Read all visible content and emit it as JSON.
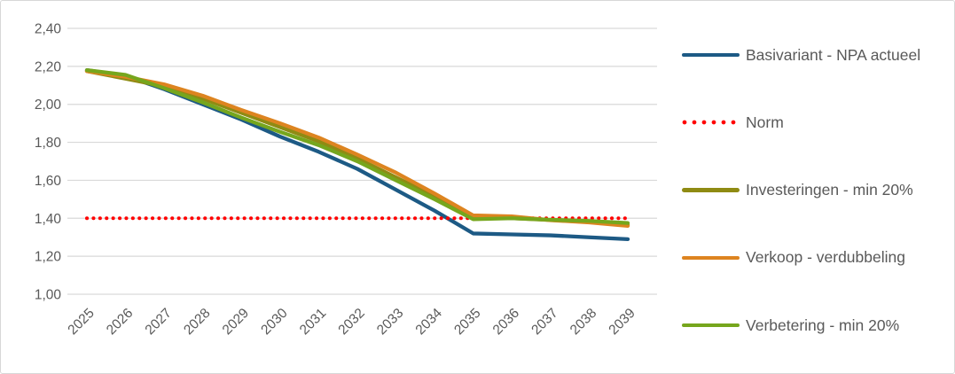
{
  "chart_data": {
    "type": "line",
    "title": "",
    "xlabel": "",
    "ylabel": "",
    "x_categories": [
      "2025",
      "2026",
      "2027",
      "2028",
      "2029",
      "2030",
      "2031",
      "2032",
      "2033",
      "2034",
      "2035",
      "2036",
      "2037",
      "2038",
      "2039"
    ],
    "y_ticks": [
      {
        "label": "2,40",
        "value": 2.4
      },
      {
        "label": "2,20",
        "value": 2.2
      },
      {
        "label": "2,00",
        "value": 2.0
      },
      {
        "label": "1,80",
        "value": 1.8
      },
      {
        "label": "1,60",
        "value": 1.6
      },
      {
        "label": "1,40",
        "value": 1.4
      },
      {
        "label": "1,20",
        "value": 1.2
      },
      {
        "label": "1,00",
        "value": 1.0
      }
    ],
    "ylim": [
      1.0,
      2.4
    ],
    "grid": "horizontal-only",
    "legend_position": "right",
    "axis_text_color": "#595959",
    "gridline_color": "#D9D9D9",
    "series": [
      {
        "name": "Basivariant - NPA actueel",
        "slug": "basivariant-npa-actueel",
        "color": "#1D5A85",
        "style": "solid",
        "values": [
          2.18,
          2.15,
          2.08,
          2.0,
          1.92,
          1.83,
          1.75,
          1.66,
          1.55,
          1.44,
          1.32,
          1.315,
          1.31,
          1.3,
          1.29
        ]
      },
      {
        "name": "Norm",
        "slug": "norm",
        "color": "#FF0000",
        "style": "dotted",
        "values": [
          1.4,
          1.4,
          1.4,
          1.4,
          1.4,
          1.4,
          1.4,
          1.4,
          1.4,
          1.4,
          1.4,
          1.4,
          1.4,
          1.4,
          1.4
        ]
      },
      {
        "name": "Investeringen - min 20%",
        "slug": "investeringen-min-20",
        "color": "#8F8B13",
        "style": "solid",
        "values": [
          2.175,
          2.135,
          2.095,
          2.03,
          1.955,
          1.88,
          1.805,
          1.715,
          1.615,
          1.515,
          1.405,
          1.4,
          1.391,
          1.38,
          1.365
        ]
      },
      {
        "name": "Verkoop - verdubbeling",
        "slug": "verkoop-verdubbeling",
        "color": "#DD8420",
        "style": "solid",
        "values": [
          2.175,
          2.145,
          2.105,
          2.045,
          1.97,
          1.9,
          1.825,
          1.735,
          1.64,
          1.53,
          1.415,
          1.41,
          1.39,
          1.378,
          1.36
        ]
      },
      {
        "name": "Verbetering - min 20%",
        "slug": "verbetering-min-20",
        "color": "#76A61D",
        "style": "solid",
        "values": [
          2.18,
          2.155,
          2.085,
          2.01,
          1.93,
          1.855,
          1.785,
          1.7,
          1.6,
          1.5,
          1.395,
          1.4,
          1.392,
          1.386,
          1.375
        ]
      }
    ]
  }
}
